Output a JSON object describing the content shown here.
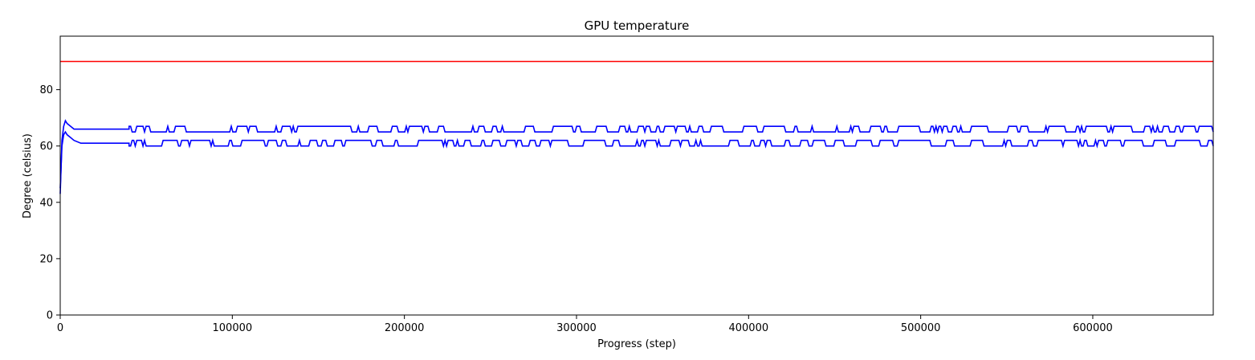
{
  "chart_data": {
    "type": "line",
    "title": "GPU temperature",
    "xlabel": "Progress (step)",
    "ylabel": "Degree (celsius)",
    "xlim": [
      0,
      670000
    ],
    "ylim": [
      0,
      99
    ],
    "xticks": [
      0,
      100000,
      200000,
      300000,
      400000,
      500000,
      600000
    ],
    "yticks": [
      0,
      20,
      40,
      60,
      80
    ],
    "grid": false,
    "threshold": {
      "y": 90,
      "color": "#ff0000"
    },
    "series": [
      {
        "color": "#0000ff",
        "x": [
          0,
          1000,
          2000,
          3000,
          4000,
          6000,
          8000,
          12000,
          20000,
          40000,
          100000,
          200000,
          300000,
          400000,
          500000,
          600000,
          670000
        ],
        "y": [
          43,
          62,
          67,
          69,
          68,
          67,
          66,
          66,
          66,
          66,
          66,
          66,
          66,
          66,
          66,
          66,
          66
        ],
        "band": [
          65,
          67
        ]
      },
      {
        "color": "#0000ff",
        "x": [
          0,
          1000,
          2000,
          3000,
          4000,
          6000,
          8000,
          12000,
          20000,
          40000,
          100000,
          200000,
          300000,
          400000,
          500000,
          600000,
          670000
        ],
        "y": [
          45,
          60,
          64,
          65,
          64,
          63,
          62,
          61,
          61,
          61,
          61,
          61,
          61,
          61,
          61,
          61,
          61
        ],
        "band": [
          60,
          62
        ]
      }
    ]
  }
}
